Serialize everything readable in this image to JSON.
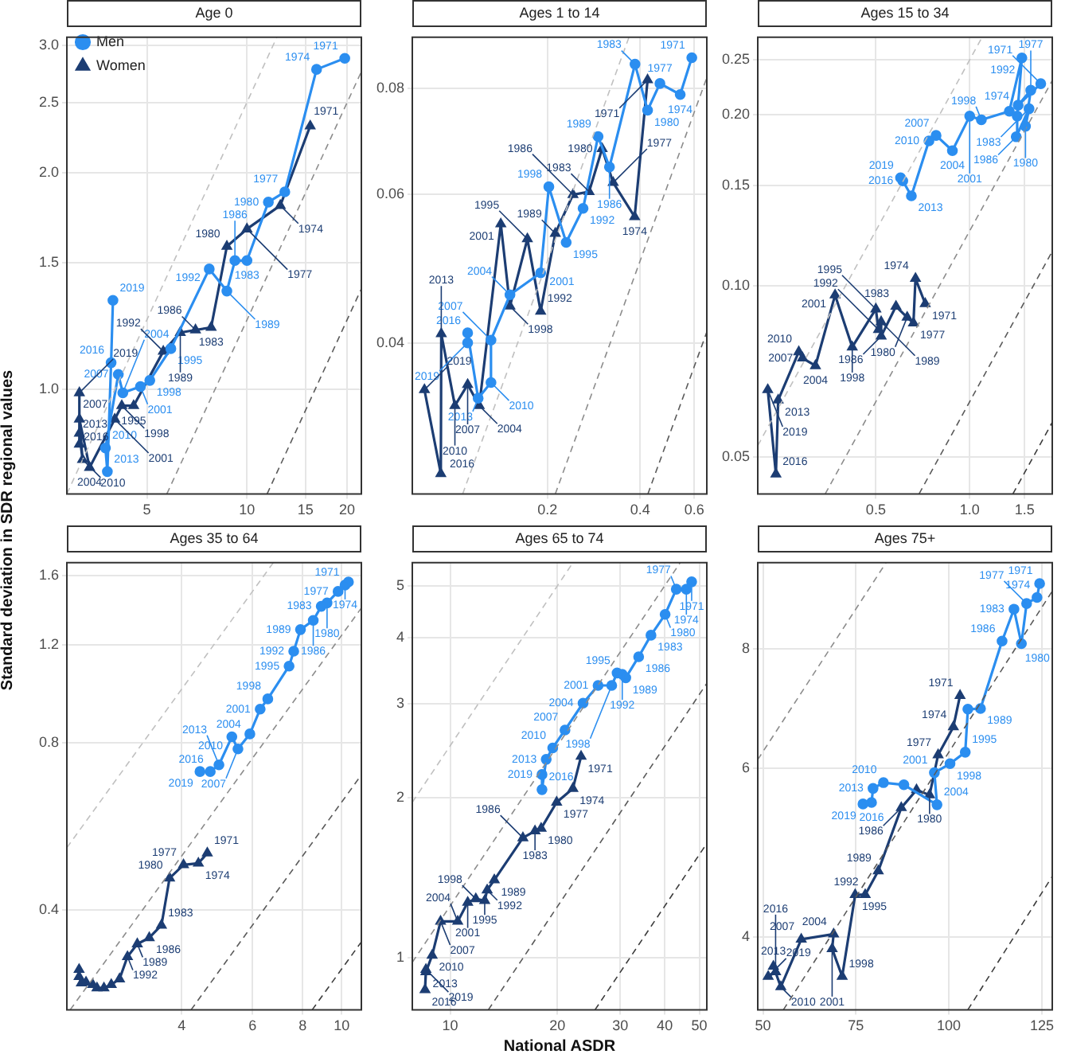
{
  "chart_data": [
    {
      "type": "line",
      "title": "Age 0",
      "ylabel": "Standard deviation in SDR regional values",
      "log": "xy",
      "grid": true,
      "legend": "top left",
      "xlim": [
        2.87,
        22.1
      ],
      "ylim": [
        0.717,
        3.08
      ],
      "xticks": [
        5,
        10,
        15,
        20
      ],
      "yticks": [
        {
          "value": 1,
          "label": "1.0"
        },
        1.5,
        {
          "value": 2,
          "label": "2.0"
        },
        2.5,
        {
          "value": 3,
          "label": "3.0"
        }
      ],
      "series": [
        {
          "type": "line",
          "color": "#c0c0c0",
          "line_style": "dashed",
          "marker": "none",
          "x": [
            2.87,
            12.3
          ],
          "values": [
            0.717,
            3.08
          ]
        },
        {
          "type": "line",
          "color": "#8c8c8c",
          "line_style": "dashed",
          "marker": "none",
          "x": [
            5.74,
            22.1
          ],
          "values": [
            0.717,
            2.76
          ]
        },
        {
          "type": "line",
          "color": "#5a5a5a",
          "line_style": "dashed",
          "marker": "none",
          "x": [
            11.5,
            22.1
          ],
          "values": [
            0.717,
            1.38
          ]
        },
        {
          "type": "line",
          "name": "Men",
          "color": "#2b8ef0",
          "marker": "circle",
          "line_style": "solid",
          "x": [
            19.7,
            16.2,
            13.0,
            11.6,
            10,
            9.2,
            8.7,
            7.7,
            5.9,
            5.1,
            4.78,
            4.23,
            4.1,
            3.75,
            3.8,
            3.9,
            3.95
          ],
          "values": [
            2.88,
            2.78,
            1.88,
            1.82,
            1.51,
            1.51,
            1.37,
            1.47,
            1.14,
            1.03,
            1.01,
            0.99,
            1.05,
            0.83,
            0.77,
            1.09,
            1.33
          ]
        },
        {
          "type": "line",
          "name": "Women",
          "color": "#1c3d73",
          "marker": "triangle",
          "line_style": "solid",
          "x": [
            15.5,
            12.6,
            10,
            8.7,
            7.8,
            7.0,
            6.3,
            5.6,
            4.56,
            4.2,
            4.0,
            3.36,
            3.13,
            3.2,
            3.13,
            3.13,
            3.13
          ],
          "values": [
            2.32,
            1.8,
            1.67,
            1.58,
            1.22,
            1.21,
            1.2,
            1.13,
            0.95,
            0.95,
            0.91,
            0.78,
            0.91,
            0.8,
            0.87,
            0.84,
            0.99
          ]
        }
      ],
      "annotations": [
        {
          "text": "1971",
          "x": 19.7,
          "y": 2.88
        },
        {
          "text": "1974",
          "x": 16.2,
          "y": 2.78
        },
        {
          "text": "1977",
          "x": 13.0,
          "y": 1.88
        },
        {
          "text": "1980",
          "x": 11.6,
          "y": 1.82
        },
        {
          "text": "1983",
          "x": 10,
          "y": 1.51
        },
        {
          "text": "1986",
          "x": 9.2,
          "y": 1.51
        },
        {
          "text": "1989",
          "x": 8.7,
          "y": 1.37
        },
        {
          "text": "1992",
          "x": 7.7,
          "y": 1.47
        },
        {
          "text": "1995",
          "x": 5.9,
          "y": 1.14
        },
        {
          "text": "1998",
          "x": 5.1,
          "y": 1.03
        },
        {
          "text": "2001",
          "x": 4.78,
          "y": 1.01
        },
        {
          "text": "2004",
          "x": 4.23,
          "y": 0.99
        },
        {
          "text": "2007",
          "x": 4.1,
          "y": 1.05
        },
        {
          "text": "2010",
          "x": 3.75,
          "y": 0.83
        },
        {
          "text": "2013",
          "x": 3.8,
          "y": 0.77
        },
        {
          "text": "2016",
          "x": 3.9,
          "y": 1.09
        },
        {
          "text": "2019",
          "x": 3.95,
          "y": 1.33
        },
        {
          "text": "1971",
          "x": 15.5,
          "y": 2.32
        },
        {
          "text": "1974",
          "x": 12.6,
          "y": 1.8
        },
        {
          "text": "1977",
          "x": 10,
          "y": 1.67
        },
        {
          "text": "1980",
          "x": 8.7,
          "y": 1.58
        },
        {
          "text": "1983",
          "x": 7.8,
          "y": 1.22
        },
        {
          "text": "1986",
          "x": 7.0,
          "y": 1.21
        },
        {
          "text": "1989",
          "x": 6.3,
          "y": 1.2
        },
        {
          "text": "1992",
          "x": 5.6,
          "y": 1.13
        },
        {
          "text": "1995",
          "x": 4.56,
          "y": 0.95
        },
        {
          "text": "1998",
          "x": 4.2,
          "y": 0.95
        },
        {
          "text": "2001",
          "x": 4.0,
          "y": 0.91
        },
        {
          "text": "2004",
          "x": 3.36,
          "y": 0.78
        },
        {
          "text": "2007",
          "x": 3.13,
          "y": 0.91
        },
        {
          "text": "2010",
          "x": 3.2,
          "y": 0.8
        },
        {
          "text": "2013",
          "x": 3.13,
          "y": 0.87
        },
        {
          "text": "2016",
          "x": 3.13,
          "y": 0.84
        },
        {
          "text": "2019",
          "x": 3.13,
          "y": 0.99
        }
      ]
    },
    {
      "type": "line",
      "title": "Ages 1 to 14",
      "log": "xy",
      "grid": true,
      "xlim": [
        0.0727,
        0.659
      ],
      "ylim": [
        0.0265,
        0.092
      ],
      "xticks": [
        0.2,
        0.4,
        0.6
      ],
      "yticks": [
        0.04,
        0.06,
        0.08
      ],
      "series": [
        {
          "type": "line",
          "color": "#c0c0c0",
          "line_style": "dashed",
          "marker": "none",
          "x": [
            0.106,
            0.368
          ],
          "values": [
            0.0265,
            0.092
          ]
        },
        {
          "type": "line",
          "color": "#8c8c8c",
          "line_style": "dashed",
          "marker": "none",
          "x": [
            0.212,
            0.659
          ],
          "values": [
            0.0265,
            0.0824
          ]
        },
        {
          "type": "line",
          "color": "#5a5a5a",
          "line_style": "dashed",
          "marker": "none",
          "x": [
            0.424,
            0.659
          ],
          "values": [
            0.0265,
            0.0412
          ]
        },
        {
          "type": "line",
          "color": "#2b8ef0",
          "marker": "circle",
          "line_style": "solid",
          "x": [
            0.589,
            0.54,
            0.464,
            0.423,
            0.385,
            0.318,
            0.292,
            0.261,
            0.23,
            0.202,
            0.19,
            0.151,
            0.131,
            0.131,
            0.119,
            0.11,
            0.11
          ],
          "values": [
            0.087,
            0.0787,
            0.0811,
            0.0754,
            0.0855,
            0.0646,
            0.0702,
            0.0577,
            0.0526,
            0.0612,
            0.0484,
            0.0456,
            0.0403,
            0.0359,
            0.0344,
            0.0411,
            0.04
          ]
        },
        {
          "type": "line",
          "color": "#1c3d73",
          "marker": "triangle",
          "line_style": "solid",
          "x": [
            0.423,
            0.384,
            0.327,
            0.301,
            0.273,
            0.242,
            0.212,
            0.19,
            0.172,
            0.151,
            0.141,
            0.12,
            0.11,
            0.1,
            0.0903,
            0.09,
            0.0796
          ],
          "values": [
            0.0819,
            0.0564,
            0.0619,
            0.0679,
            0.0604,
            0.0599,
            0.0539,
            0.0436,
            0.0531,
            0.0442,
            0.0553,
            0.0337,
            0.0357,
            0.0337,
            0.041,
            0.028,
            0.0352
          ]
        }
      ],
      "annotations": [
        {
          "text": "1971",
          "x": 0.589,
          "y": 0.087
        },
        {
          "text": "1974",
          "x": 0.54,
          "y": 0.0787
        },
        {
          "text": "1977",
          "x": 0.464,
          "y": 0.0811
        },
        {
          "text": "1980",
          "x": 0.423,
          "y": 0.0754
        },
        {
          "text": "1983",
          "x": 0.385,
          "y": 0.0855
        },
        {
          "text": "1986",
          "x": 0.318,
          "y": 0.0646
        },
        {
          "text": "1989",
          "x": 0.292,
          "y": 0.0702
        },
        {
          "text": "1992",
          "x": 0.261,
          "y": 0.0577
        },
        {
          "text": "1995",
          "x": 0.23,
          "y": 0.0526
        },
        {
          "text": "1998",
          "x": 0.202,
          "y": 0.0612
        },
        {
          "text": "2001",
          "x": 0.19,
          "y": 0.0484
        },
        {
          "text": "2004",
          "x": 0.151,
          "y": 0.0456
        },
        {
          "text": "2007",
          "x": 0.131,
          "y": 0.0403
        },
        {
          "text": "2010",
          "x": 0.131,
          "y": 0.0359
        },
        {
          "text": "2013",
          "x": 0.119,
          "y": 0.0344
        },
        {
          "text": "2016",
          "x": 0.11,
          "y": 0.0411
        },
        {
          "text": "2019",
          "x": 0.11,
          "y": 0.04
        },
        {
          "text": "1971",
          "x": 0.423,
          "y": 0.0819
        },
        {
          "text": "1974",
          "x": 0.384,
          "y": 0.0564
        },
        {
          "text": "1977",
          "x": 0.327,
          "y": 0.0619
        },
        {
          "text": "1980",
          "x": 0.301,
          "y": 0.0679
        },
        {
          "text": "1983",
          "x": 0.273,
          "y": 0.0604
        },
        {
          "text": "1986",
          "x": 0.242,
          "y": 0.0599
        },
        {
          "text": "1989",
          "x": 0.212,
          "y": 0.0539
        },
        {
          "text": "1992",
          "x": 0.19,
          "y": 0.0436
        },
        {
          "text": "1995",
          "x": 0.172,
          "y": 0.0531
        },
        {
          "text": "1998",
          "x": 0.151,
          "y": 0.0442
        },
        {
          "text": "2001",
          "x": 0.141,
          "y": 0.0553
        },
        {
          "text": "2004",
          "x": 0.12,
          "y": 0.0337
        },
        {
          "text": "2007",
          "x": 0.11,
          "y": 0.0357
        },
        {
          "text": "2010",
          "x": 0.1,
          "y": 0.0337
        },
        {
          "text": "2013",
          "x": 0.0903,
          "y": 0.041
        },
        {
          "text": "2016",
          "x": 0.09,
          "y": 0.028
        },
        {
          "text": "2019",
          "x": 0.0796,
          "y": 0.0352
        }
      ]
    },
    {
      "type": "line",
      "title": "Ages 15 to 34",
      "log": "xy",
      "grid": true,
      "xlim": [
        0.209,
        1.84
      ],
      "ylim": [
        0.043,
        0.274
      ],
      "xticks": [
        0.5,
        {
          "value": 1,
          "label": "1.0"
        },
        1.5
      ],
      "yticks": [
        0.05,
        {
          "value": 0.1,
          "label": "0.10"
        },
        0.15,
        {
          "value": 0.2,
          "label": "0.20"
        },
        0.25
      ],
      "series": [
        {
          "type": "line",
          "color": "#c0c0c0",
          "line_style": "dashed",
          "marker": "none",
          "x": [
            0.209,
            1.096
          ],
          "values": [
            0.0523,
            0.274
          ]
        },
        {
          "type": "line",
          "color": "#8c8c8c",
          "line_style": "dashed",
          "marker": "none",
          "x": [
            0.344,
            1.84
          ],
          "values": [
            0.043,
            0.23
          ]
        },
        {
          "type": "line",
          "color": "#5a5a5a",
          "line_style": "dashed",
          "marker": "none",
          "x": [
            0.688,
            1.84
          ],
          "values": [
            0.043,
            0.115
          ]
        },
        {
          "type": "line",
          "color": "#3c3c3c",
          "line_style": "dashed",
          "marker": "none",
          "x": [
            1.376,
            1.84
          ],
          "values": [
            0.043,
            0.0575
          ]
        },
        {
          "type": "line",
          "color": "#2b8ef0",
          "marker": "circle",
          "line_style": "solid",
          "x": [
            1.69,
            1.43,
            1.57,
            1.51,
            1.55,
            1.41,
            1.42,
            1.47,
            1.34,
            1.09,
            1.0,
            0.88,
            0.78,
            0.74,
            0.65,
            0.61,
            0.6
          ],
          "values": [
            0.227,
            0.208,
            0.221,
            0.191,
            0.205,
            0.183,
            0.199,
            0.252,
            0.203,
            0.196,
            0.199,
            0.173,
            0.184,
            0.18,
            0.144,
            0.153,
            0.155
          ]
        },
        {
          "type": "line",
          "color": "#1c3d73",
          "marker": "triangle",
          "line_style": "solid",
          "x": [
            0.72,
            0.67,
            0.66,
            0.63,
            0.58,
            0.52,
            0.52,
            0.51,
            0.5,
            0.42,
            0.37,
            0.32,
            0.291,
            0.283,
            0.243,
            0.239,
            0.225
          ],
          "values": [
            0.093,
            0.103,
            0.086,
            0.088,
            0.092,
            0.0815,
            0.0864,
            0.0837,
            0.091,
            0.078,
            0.0963,
            0.0723,
            0.0746,
            0.0765,
            0.0629,
            0.0466,
            0.0656
          ]
        }
      ],
      "annotations": [
        {
          "text": "1971",
          "x": 1.69,
          "y": 0.227
        },
        {
          "text": "1974",
          "x": 1.43,
          "y": 0.208
        },
        {
          "text": "1977",
          "x": 1.57,
          "y": 0.221
        },
        {
          "text": "1980",
          "x": 1.51,
          "y": 0.191
        },
        {
          "text": "1983",
          "x": 1.55,
          "y": 0.205
        },
        {
          "text": "1986",
          "x": 1.41,
          "y": 0.183
        },
        {
          "text": "1992",
          "x": 1.47,
          "y": 0.252
        },
        {
          "text": "1998",
          "x": 1.09,
          "y": 0.196
        },
        {
          "text": "2001",
          "x": 1.0,
          "y": 0.199
        },
        {
          "text": "2004",
          "x": 0.88,
          "y": 0.173
        },
        {
          "text": "2007",
          "x": 0.78,
          "y": 0.184
        },
        {
          "text": "2010",
          "x": 0.74,
          "y": 0.18
        },
        {
          "text": "2013",
          "x": 0.65,
          "y": 0.144
        },
        {
          "text": "2016",
          "x": 0.61,
          "y": 0.153
        },
        {
          "text": "2019",
          "x": 0.6,
          "y": 0.155
        },
        {
          "text": "1971",
          "x": 0.72,
          "y": 0.093
        },
        {
          "text": "1974",
          "x": 0.67,
          "y": 0.103
        },
        {
          "text": "1977",
          "x": 0.66,
          "y": 0.086
        },
        {
          "text": "1980",
          "x": 0.63,
          "y": 0.088
        },
        {
          "text": "1983",
          "x": 0.58,
          "y": 0.092
        },
        {
          "text": "1986",
          "x": 0.52,
          "y": 0.0815
        },
        {
          "text": "1989",
          "x": 0.52,
          "y": 0.0864
        },
        {
          "text": "1992",
          "x": 0.51,
          "y": 0.0837
        },
        {
          "text": "1995",
          "x": 0.5,
          "y": 0.091
        },
        {
          "text": "1998",
          "x": 0.42,
          "y": 0.078
        },
        {
          "text": "2001",
          "x": 0.37,
          "y": 0.0963
        },
        {
          "text": "2004",
          "x": 0.32,
          "y": 0.0723
        },
        {
          "text": "2007",
          "x": 0.291,
          "y": 0.0746
        },
        {
          "text": "2010",
          "x": 0.283,
          "y": 0.0765
        },
        {
          "text": "2013",
          "x": 0.243,
          "y": 0.0629
        },
        {
          "text": "2016",
          "x": 0.239,
          "y": 0.0466
        },
        {
          "text": "2019",
          "x": 0.225,
          "y": 0.0656
        }
      ]
    },
    {
      "type": "line",
      "title": "Ages 35 to 64",
      "log": "xy",
      "grid": true,
      "xlim": [
        2.07,
        11.2
      ],
      "ylim": [
        0.264,
        1.69
      ],
      "xticks": [
        4,
        6,
        8,
        10
      ],
      "yticks": [
        0.4,
        0.8,
        1.2,
        1.6
      ],
      "series": [
        {
          "type": "line",
          "color": "#c0c0c0",
          "line_style": "dashed",
          "marker": "none",
          "x": [
            2.07,
            6.76
          ],
          "values": [
            0.5175,
            1.69
          ]
        },
        {
          "type": "line",
          "color": "#8c8c8c",
          "line_style": "dashed",
          "marker": "none",
          "x": [
            2.11,
            11.2
          ],
          "values": [
            0.264,
            1.4
          ]
        },
        {
          "type": "line",
          "color": "#5a5a5a",
          "line_style": "dashed",
          "marker": "none",
          "x": [
            4.22,
            11.2
          ],
          "values": [
            0.264,
            0.7
          ]
        },
        {
          "type": "line",
          "color": "#3c3c3c",
          "line_style": "dashed",
          "marker": "none",
          "x": [
            8.45,
            11.2
          ],
          "values": [
            0.264,
            0.35
          ]
        },
        {
          "type": "line",
          "color": "#2b8ef0",
          "marker": "circle",
          "line_style": "solid",
          "x": [
            10.4,
            10.2,
            9.8,
            9.2,
            8.9,
            8.5,
            7.9,
            7.6,
            7.4,
            6.55,
            6.27,
            5.91,
            5.52,
            5.33,
            4.95,
            4.71,
            4.44
          ],
          "values": [
            1.56,
            1.54,
            1.5,
            1.43,
            1.41,
            1.33,
            1.28,
            1.17,
            1.1,
            0.96,
            0.92,
            0.83,
            0.78,
            0.82,
            0.73,
            0.71,
            0.71
          ]
        },
        {
          "type": "line",
          "color": "#1c3d73",
          "marker": "triangle",
          "line_style": "solid",
          "x": [
            4.63,
            4.4,
            4.04,
            3.73,
            3.56,
            3.32,
            3.1,
            2.93,
            2.8,
            2.67,
            2.56,
            2.46,
            2.4,
            2.31,
            2.25,
            2.22,
            2.22
          ],
          "values": [
            0.506,
            0.485,
            0.482,
            0.456,
            0.375,
            0.356,
            0.347,
            0.329,
            0.3,
            0.293,
            0.289,
            0.289,
            0.293,
            0.296,
            0.295,
            0.303,
            0.312
          ]
        }
      ],
      "annotations": [
        {
          "text": "1971",
          "x": 10.4,
          "y": 1.56
        },
        {
          "text": "1974",
          "x": 10.2,
          "y": 1.54
        },
        {
          "text": "1977",
          "x": 9.8,
          "y": 1.5
        },
        {
          "text": "1980",
          "x": 9.2,
          "y": 1.43
        },
        {
          "text": "1983",
          "x": 8.9,
          "y": 1.41
        },
        {
          "text": "1986",
          "x": 8.5,
          "y": 1.33
        },
        {
          "text": "1989",
          "x": 7.9,
          "y": 1.28
        },
        {
          "text": "1992",
          "x": 7.6,
          "y": 1.17
        },
        {
          "text": "1995",
          "x": 7.4,
          "y": 1.1
        },
        {
          "text": "1998",
          "x": 6.55,
          "y": 0.96
        },
        {
          "text": "2001",
          "x": 6.27,
          "y": 0.92
        },
        {
          "text": "2004",
          "x": 5.91,
          "y": 0.83
        },
        {
          "text": "2007",
          "x": 5.52,
          "y": 0.78
        },
        {
          "text": "2010",
          "x": 5.33,
          "y": 0.82
        },
        {
          "text": "2013",
          "x": 4.95,
          "y": 0.73
        },
        {
          "text": "2016",
          "x": 4.71,
          "y": 0.71
        },
        {
          "text": "2019",
          "x": 4.44,
          "y": 0.71
        },
        {
          "text": "1971",
          "x": 4.63,
          "y": 0.506
        },
        {
          "text": "1974",
          "x": 4.4,
          "y": 0.485
        },
        {
          "text": "1977",
          "x": 4.04,
          "y": 0.482
        },
        {
          "text": "1980",
          "x": 3.73,
          "y": 0.456
        },
        {
          "text": "1983",
          "x": 3.56,
          "y": 0.375
        },
        {
          "text": "1986",
          "x": 3.32,
          "y": 0.356
        },
        {
          "text": "1989",
          "x": 3.1,
          "y": 0.347
        },
        {
          "text": "1992",
          "x": 2.93,
          "y": 0.329
        }
      ]
    },
    {
      "type": "line",
      "title": "Ages 65 to 74",
      "xlabel": "National ASDR",
      "log": "xy",
      "grid": true,
      "xlim": [
        7.83,
        52.5
      ],
      "ylim": [
        0.798,
        5.53
      ],
      "xticks": [
        10,
        20,
        30,
        40,
        50
      ],
      "yticks": [
        1,
        2,
        3,
        4,
        5
      ],
      "series": [
        {
          "type": "line",
          "color": "#c0c0c0",
          "line_style": "dashed",
          "marker": "none",
          "x": [
            7.83,
            22.1
          ],
          "values": [
            1.96,
            5.53
          ]
        },
        {
          "type": "line",
          "color": "#8c8c8c",
          "line_style": "dashed",
          "marker": "none",
          "x": [
            7.83,
            44.2
          ],
          "values": [
            0.98,
            5.53
          ]
        },
        {
          "type": "line",
          "color": "#5a5a5a",
          "line_style": "dashed",
          "marker": "none",
          "x": [
            12.8,
            52.5
          ],
          "values": [
            0.798,
            3.28
          ]
        },
        {
          "type": "line",
          "color": "#3c3c3c",
          "line_style": "dashed",
          "marker": "none",
          "x": [
            25.5,
            52.5
          ],
          "values": [
            0.798,
            1.64
          ]
        },
        {
          "type": "line",
          "color": "#2b8ef0",
          "marker": "circle",
          "line_style": "solid",
          "x": [
            47.6,
            46,
            43.1,
            40.1,
            36.6,
            33.8,
            31.1,
            30.4,
            29.4,
            28.4,
            26,
            23.6,
            21,
            19.4,
            18.6,
            18.1,
            18.1
          ],
          "values": [
            5.09,
            4.93,
            4.93,
            4.42,
            4.04,
            3.68,
            3.36,
            3.41,
            3.43,
            3.25,
            3.25,
            3.01,
            2.68,
            2.48,
            2.36,
            2.07,
            2.21
          ]
        },
        {
          "type": "line",
          "color": "#1c3d73",
          "marker": "triangle",
          "line_style": "solid",
          "x": [
            23.3,
            22.1,
            19.9,
            18.0,
            17.3,
            16,
            13.3,
            12.7,
            12.5,
            11.8,
            11.2,
            10.5,
            9.4,
            8.9,
            8.55,
            8.5,
            8.55
          ],
          "values": [
            2.39,
            2.08,
            1.96,
            1.75,
            1.73,
            1.68,
            1.4,
            1.34,
            1.28,
            1.29,
            1.27,
            1.17,
            1.17,
            1.01,
            0.94,
            0.87,
            0.95
          ]
        }
      ],
      "annotations": [
        {
          "text": "1971",
          "x": 47.6,
          "y": 5.09
        },
        {
          "text": "1974",
          "x": 46,
          "y": 4.93
        },
        {
          "text": "1977",
          "x": 43.1,
          "y": 4.93
        },
        {
          "text": "1980",
          "x": 40.1,
          "y": 4.42
        },
        {
          "text": "1983",
          "x": 36.6,
          "y": 4.04
        },
        {
          "text": "1986",
          "x": 33.8,
          "y": 3.68
        },
        {
          "text": "1989",
          "x": 31.1,
          "y": 3.36
        },
        {
          "text": "1992",
          "x": 30.4,
          "y": 3.41
        },
        {
          "text": "1995",
          "x": 29.4,
          "y": 3.43
        },
        {
          "text": "1998",
          "x": 28.4,
          "y": 3.25
        },
        {
          "text": "2001",
          "x": 26,
          "y": 3.25
        },
        {
          "text": "2004",
          "x": 23.6,
          "y": 3.01
        },
        {
          "text": "2007",
          "x": 21,
          "y": 2.68
        },
        {
          "text": "2010",
          "x": 19.4,
          "y": 2.48
        },
        {
          "text": "2013",
          "x": 18.6,
          "y": 2.36
        },
        {
          "text": "2016",
          "x": 18.1,
          "y": 2.07
        },
        {
          "text": "2019",
          "x": 18.1,
          "y": 2.21
        },
        {
          "text": "1971",
          "x": 23.3,
          "y": 2.39
        },
        {
          "text": "1974",
          "x": 22.1,
          "y": 2.08
        },
        {
          "text": "1977",
          "x": 19.9,
          "y": 1.96
        },
        {
          "text": "1980",
          "x": 18.0,
          "y": 1.75
        },
        {
          "text": "1983",
          "x": 17.3,
          "y": 1.73
        },
        {
          "text": "1986",
          "x": 16,
          "y": 1.68
        },
        {
          "text": "1989",
          "x": 13.3,
          "y": 1.4
        },
        {
          "text": "1992",
          "x": 12.7,
          "y": 1.34
        },
        {
          "text": "1995",
          "x": 12.5,
          "y": 1.28
        },
        {
          "text": "1998",
          "x": 11.8,
          "y": 1.29
        },
        {
          "text": "2001",
          "x": 11.2,
          "y": 1.27
        },
        {
          "text": "2004",
          "x": 10.5,
          "y": 1.17
        },
        {
          "text": "2007",
          "x": 9.4,
          "y": 1.17
        },
        {
          "text": "2010",
          "x": 8.9,
          "y": 1.01
        },
        {
          "text": "2013",
          "x": 8.55,
          "y": 0.94
        },
        {
          "text": "2016",
          "x": 8.5,
          "y": 0.87
        },
        {
          "text": "2019",
          "x": 8.55,
          "y": 0.95
        }
      ]
    },
    {
      "type": "line",
      "title": "Ages 75+",
      "log": "y",
      "grid": true,
      "xlim": [
        48.6,
        127.8
      ],
      "ylim": [
        3.36,
        9.84
      ],
      "xticks": [
        50,
        75,
        100,
        125
      ],
      "yticks": [
        4,
        6,
        8
      ],
      "series": [
        {
          "type": "line",
          "color": "#8c8c8c",
          "line_style": "dashed",
          "marker": "none",
          "x": [
            48.6,
            83.1
          ],
          "values": [
            6.13,
            9.84
          ]
        },
        {
          "type": "line",
          "color": "#5a5a5a",
          "line_style": "dashed",
          "marker": "none",
          "x": [
            55.5,
            127.8
          ],
          "values": [
            3.36,
            9.19
          ]
        },
        {
          "type": "line",
          "color": "#3c3c3c",
          "line_style": "dashed",
          "marker": "none",
          "x": [
            105.1,
            127.8
          ],
          "values": [
            3.36,
            4.63
          ]
        },
        {
          "type": "line",
          "color": "#2b8ef0",
          "marker": "circle",
          "line_style": "solid",
          "x": [
            124.4,
            123.7,
            120.9,
            119.5,
            117.5,
            114.3,
            108.5,
            105.1,
            104.4,
            100.3,
            96.1,
            96.8,
            87.9,
            82.4,
            79.6,
            79.2,
            76.9
          ],
          "values": [
            9.36,
            9.05,
            8.92,
            8.1,
            8.8,
            8.15,
            6.93,
            6.92,
            6.24,
            6.07,
            5.94,
            5.5,
            5.77,
            5.8,
            5.72,
            5.53,
            5.51
          ]
        },
        {
          "type": "line",
          "color": "#1c3d73",
          "marker": "triangle",
          "line_style": "solid",
          "x": [
            103,
            101.2,
            97.1,
            94.8,
            91.3,
            87.2,
            81,
            77.5,
            74.8,
            71.3,
            68.6,
            69,
            60.3,
            54.8,
            52.8,
            53.4,
            51.4
          ],
          "values": [
            7.15,
            6.63,
            6.2,
            5.63,
            5.7,
            5.46,
            4.69,
            4.43,
            4.43,
            3.64,
            3.89,
            4.03,
            3.98,
            3.55,
            3.73,
            3.68,
            3.64
          ]
        }
      ],
      "annotations": [
        {
          "text": "1971",
          "x": 124.4,
          "y": 9.36
        },
        {
          "text": "1974",
          "x": 123.7,
          "y": 9.05
        },
        {
          "text": "1977",
          "x": 120.9,
          "y": 8.92
        },
        {
          "text": "1980",
          "x": 119.5,
          "y": 8.1
        },
        {
          "text": "1983",
          "x": 117.5,
          "y": 8.8
        },
        {
          "text": "1986",
          "x": 114.3,
          "y": 8.15
        },
        {
          "text": "1989",
          "x": 108.5,
          "y": 6.93
        },
        {
          "text": "1995",
          "x": 104.4,
          "y": 6.24
        },
        {
          "text": "1998",
          "x": 100.3,
          "y": 6.07
        },
        {
          "text": "2001",
          "x": 96.1,
          "y": 5.94
        },
        {
          "text": "2004",
          "x": 96.8,
          "y": 5.5
        },
        {
          "text": "2010",
          "x": 82.4,
          "y": 5.8
        },
        {
          "text": "2013",
          "x": 79.6,
          "y": 5.72
        },
        {
          "text": "2016",
          "x": 79.2,
          "y": 5.53
        },
        {
          "text": "2019",
          "x": 76.9,
          "y": 5.51
        },
        {
          "text": "1971",
          "x": 103,
          "y": 7.15
        },
        {
          "text": "1974",
          "x": 101.2,
          "y": 6.63
        },
        {
          "text": "1977",
          "x": 97.1,
          "y": 6.2
        },
        {
          "text": "1980",
          "x": 94.8,
          "y": 5.63
        },
        {
          "text": "1986",
          "x": 87.2,
          "y": 5.46
        },
        {
          "text": "1989",
          "x": 81,
          "y": 4.69
        },
        {
          "text": "1992",
          "x": 77.5,
          "y": 4.43
        },
        {
          "text": "1995",
          "x": 74.8,
          "y": 4.43
        },
        {
          "text": "1998",
          "x": 71.3,
          "y": 3.64
        },
        {
          "text": "2001",
          "x": 68.6,
          "y": 3.89
        },
        {
          "text": "2004",
          "x": 69,
          "y": 4.03
        },
        {
          "text": "2007",
          "x": 60.3,
          "y": 3.98
        },
        {
          "text": "2010",
          "x": 54.8,
          "y": 3.55
        },
        {
          "text": "2013",
          "x": 52.8,
          "y": 3.73
        },
        {
          "text": "2016",
          "x": 53.4,
          "y": 3.68
        },
        {
          "text": "2019",
          "x": 51.4,
          "y": 3.64
        }
      ]
    }
  ]
}
